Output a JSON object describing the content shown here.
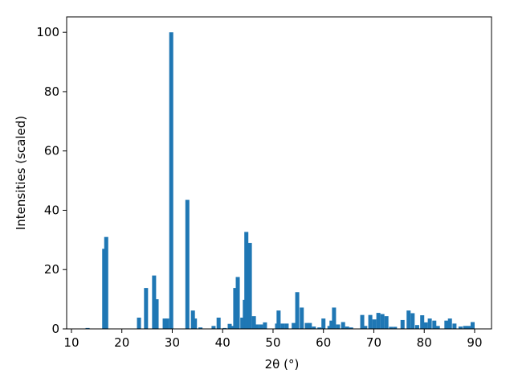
{
  "chart_data": {
    "type": "bar",
    "x_label": "2θ (°)",
    "y_label": "Intensities (scaled)",
    "color": "#1f77b4",
    "x": [
      13.2,
      16.5,
      16.9,
      23.4,
      24.8,
      26.4,
      26.9,
      28.5,
      29.0,
      29.8,
      33.0,
      34.1,
      34.5,
      35.6,
      38.2,
      39.2,
      40.4,
      41.4,
      41.9,
      42.5,
      43.0,
      43.9,
      44.4,
      44.7,
      45.4,
      46.2,
      46.8,
      47.6,
      48.4,
      50.8,
      51.1,
      51.9,
      52.7,
      54.1,
      54.8,
      55.7,
      56.7,
      57.3,
      58.1,
      59.2,
      60.0,
      61.2,
      61.6,
      62.1,
      62.9,
      63.9,
      64.7,
      65.5,
      67.7,
      68.3,
      69.3,
      70.1,
      70.9,
      71.7,
      72.5,
      73.4,
      74.2,
      75.7,
      76.9,
      77.7,
      78.6,
      79.6,
      80.3,
      81.1,
      82.0,
      82.7,
      84.4,
      85.1,
      86.0,
      87.2,
      88.1,
      88.8,
      89.6
    ],
    "values": [
      0.3,
      27,
      31,
      3.8,
      13.8,
      18,
      10,
      3.5,
      3.5,
      100,
      43.5,
      6.2,
      3.5,
      0.5,
      1,
      3.8,
      0.3,
      1.7,
      1.0,
      13.8,
      17.5,
      3.8,
      9.8,
      32.7,
      29,
      4.3,
      1.5,
      1.5,
      2.2,
      1.8,
      6.2,
      1.8,
      1.8,
      2,
      12.4,
      7.2,
      2.0,
      2.0,
      0.8,
      0.5,
      3.5,
      1,
      2.8,
      7.2,
      1.5,
      2.3,
      0.8,
      0.5,
      4.7,
      1,
      4.7,
      3.2,
      5.4,
      5,
      4.3,
      0.7,
      0.7,
      3,
      6.2,
      5.3,
      1.3,
      4.6,
      2.2,
      3.5,
      2.8,
      1,
      2.8,
      3.5,
      1.8,
      0.8,
      1,
      1,
      2.3
    ],
    "xlim": [
      9.05,
      93.35
    ],
    "ylim": [
      0,
      105.2
    ],
    "xticks": [
      10,
      20,
      30,
      40,
      50,
      60,
      70,
      80,
      90
    ],
    "yticks": [
      0,
      20,
      40,
      60,
      80,
      100
    ]
  }
}
